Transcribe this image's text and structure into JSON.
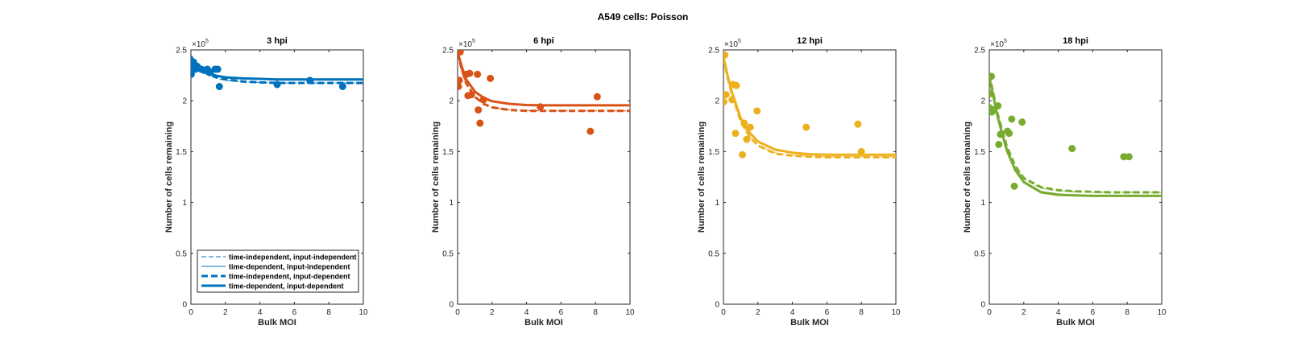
{
  "figure": {
    "title": "A549 cells: Poisson"
  },
  "chart_data": [
    {
      "type": "scatter",
      "title": "3 hpi",
      "xlabel": "Bulk MOI",
      "ylabel": "Number of cells remaining",
      "xlim": [
        0,
        10
      ],
      "ylim": [
        0,
        2.5
      ],
      "y_multiplier": "×10^5",
      "xticks": [
        "0",
        "2",
        "4",
        "6",
        "8",
        "10"
      ],
      "yticks": [
        "0",
        "0.5",
        "1",
        "1.5",
        "2",
        "2.5"
      ],
      "color": "#0072BD",
      "points": {
        "x": [
          0.02,
          0.05,
          0.1,
          0.15,
          0.25,
          0.35,
          0.45,
          0.6,
          0.75,
          0.95,
          1.1,
          1.4,
          1.55,
          1.65,
          5.0,
          6.9,
          8.8
        ],
        "y": [
          2.26,
          2.35,
          2.33,
          2.38,
          2.31,
          2.34,
          2.32,
          2.31,
          2.3,
          2.31,
          2.28,
          2.31,
          2.31,
          2.14,
          2.16,
          2.2,
          2.14
        ]
      },
      "series": [
        {
          "name": "time-independent, input-independent",
          "style": "thin-dashed",
          "x": [
            0,
            0.25,
            0.5,
            1,
            1.5,
            2,
            3,
            4,
            5,
            6,
            7,
            8,
            9,
            10
          ],
          "y": [
            2.41,
            2.35,
            2.3,
            2.25,
            2.22,
            2.2,
            2.185,
            2.18,
            2.175,
            2.175,
            2.175,
            2.175,
            2.175,
            2.175
          ]
        },
        {
          "name": "time-dependent, input-independent",
          "style": "thin-solid",
          "x": [
            0,
            0.25,
            0.5,
            1,
            1.5,
            2,
            3,
            4,
            5,
            6,
            7,
            8,
            9,
            10
          ],
          "y": [
            2.42,
            2.36,
            2.31,
            2.265,
            2.24,
            2.225,
            2.215,
            2.212,
            2.21,
            2.21,
            2.21,
            2.21,
            2.21,
            2.21
          ]
        },
        {
          "name": "time-independent, input-dependent",
          "style": "thick-dashed",
          "x": [
            0,
            0.25,
            0.5,
            1,
            1.5,
            2,
            3,
            4,
            5,
            6,
            7,
            8,
            9,
            10
          ],
          "y": [
            2.43,
            2.36,
            2.31,
            2.26,
            2.23,
            2.21,
            2.19,
            2.18,
            2.175,
            2.175,
            2.175,
            2.175,
            2.175,
            2.175
          ]
        },
        {
          "name": "time-dependent, input-dependent",
          "style": "thick-solid",
          "x": [
            0,
            0.25,
            0.5,
            1,
            1.5,
            2,
            3,
            4,
            5,
            6,
            7,
            8,
            9,
            10
          ],
          "y": [
            2.44,
            2.37,
            2.32,
            2.27,
            2.245,
            2.23,
            2.22,
            2.215,
            2.21,
            2.21,
            2.21,
            2.21,
            2.21,
            2.21
          ]
        }
      ],
      "legend": {
        "placement": "bottom-right",
        "entries": [
          "time-independent, input-independent",
          "time-dependent, input-independent",
          "time-independent, input-dependent",
          "time-dependent, input-dependent"
        ]
      }
    },
    {
      "type": "scatter",
      "title": "6 hpi",
      "xlabel": "Bulk MOI",
      "ylabel": "Number of cells remaining",
      "xlim": [
        0,
        10
      ],
      "ylim": [
        0,
        2.5
      ],
      "y_multiplier": "×10^5",
      "xticks": [
        "0",
        "2",
        "4",
        "6",
        "8",
        "10"
      ],
      "yticks": [
        "0",
        "0.5",
        "1",
        "1.5",
        "2",
        "2.5"
      ],
      "color": "#D95319",
      "points": {
        "x": [
          0.05,
          0.1,
          0.15,
          0.5,
          0.6,
          0.7,
          0.8,
          1.15,
          1.2,
          1.3,
          1.5,
          1.9,
          4.8,
          7.7,
          8.1
        ],
        "y": [
          2.14,
          2.2,
          2.48,
          2.26,
          2.05,
          2.27,
          2.06,
          2.26,
          1.91,
          1.78,
          2.01,
          2.22,
          1.94,
          1.7,
          2.04
        ]
      },
      "series": [
        {
          "name": "time-independent, input-independent",
          "style": "thin-dashed",
          "x": [
            0,
            0.25,
            0.5,
            1,
            1.5,
            2,
            3,
            4,
            5,
            6,
            7,
            8,
            9,
            10
          ],
          "y": [
            2.45,
            2.28,
            2.16,
            2.03,
            1.97,
            1.935,
            1.91,
            1.905,
            1.9,
            1.9,
            1.9,
            1.9,
            1.9,
            1.9
          ]
        },
        {
          "name": "time-dependent, input-independent",
          "style": "thin-solid",
          "x": [
            0,
            0.25,
            0.5,
            1,
            1.5,
            2,
            3,
            4,
            5,
            6,
            7,
            8,
            9,
            10
          ],
          "y": [
            2.46,
            2.31,
            2.2,
            2.08,
            2.02,
            1.99,
            1.965,
            1.955,
            1.95,
            1.95,
            1.95,
            1.95,
            1.95,
            1.95
          ]
        },
        {
          "name": "time-independent, input-dependent",
          "style": "thick-dashed",
          "x": [
            0,
            0.25,
            0.5,
            1,
            1.5,
            2,
            3,
            4,
            5,
            6,
            7,
            8,
            9,
            10
          ],
          "y": [
            2.47,
            2.3,
            2.17,
            2.04,
            1.97,
            1.935,
            1.91,
            1.9,
            1.9,
            1.9,
            1.9,
            1.9,
            1.9,
            1.9
          ]
        },
        {
          "name": "time-dependent, input-dependent",
          "style": "thick-solid",
          "x": [
            0,
            0.25,
            0.5,
            1,
            1.5,
            2,
            3,
            4,
            5,
            6,
            7,
            8,
            9,
            10
          ],
          "y": [
            2.48,
            2.33,
            2.21,
            2.09,
            2.03,
            1.995,
            1.97,
            1.958,
            1.955,
            1.955,
            1.955,
            1.955,
            1.955,
            1.955
          ]
        }
      ]
    },
    {
      "type": "scatter",
      "title": "12 hpi",
      "xlabel": "Bulk MOI",
      "ylabel": "Number of cells remaining",
      "xlim": [
        0,
        10
      ],
      "ylim": [
        0,
        2.5
      ],
      "y_multiplier": "×10^5",
      "xticks": [
        "0",
        "2",
        "4",
        "6",
        "8",
        "10"
      ],
      "yticks": [
        "0",
        "0.5",
        "1",
        "1.5",
        "2",
        "2.5"
      ],
      "color": "#EDB120",
      "points": {
        "x": [
          0.02,
          0.08,
          0.15,
          0.5,
          0.55,
          0.7,
          0.75,
          1.1,
          1.2,
          1.35,
          1.55,
          1.95,
          4.8,
          7.8,
          8.0
        ],
        "y": [
          1.99,
          2.45,
          2.06,
          2.01,
          2.16,
          1.68,
          2.15,
          1.47,
          1.78,
          1.62,
          1.74,
          1.9,
          1.74,
          1.77,
          1.5
        ]
      },
      "series": [
        {
          "name": "time-independent, input-independent",
          "style": "thin-dashed",
          "x": [
            0,
            0.25,
            0.5,
            1,
            1.5,
            2,
            3,
            4,
            5,
            6,
            7,
            8,
            9,
            10
          ],
          "y": [
            2.4,
            2.21,
            2.05,
            1.8,
            1.65,
            1.56,
            1.49,
            1.465,
            1.455,
            1.45,
            1.45,
            1.45,
            1.45,
            1.45
          ]
        },
        {
          "name": "time-dependent, input-independent",
          "style": "thin-solid",
          "x": [
            0,
            0.25,
            0.5,
            1,
            1.5,
            2,
            3,
            4,
            5,
            6,
            7,
            8,
            9,
            10
          ],
          "y": [
            2.41,
            2.22,
            2.07,
            1.82,
            1.68,
            1.59,
            1.51,
            1.485,
            1.475,
            1.47,
            1.47,
            1.47,
            1.47,
            1.47
          ]
        },
        {
          "name": "time-independent, input-dependent",
          "style": "thick-dashed",
          "x": [
            0,
            0.25,
            0.5,
            1,
            1.5,
            2,
            3,
            4,
            5,
            6,
            7,
            8,
            9,
            10
          ],
          "y": [
            2.42,
            2.22,
            2.06,
            1.8,
            1.65,
            1.56,
            1.48,
            1.46,
            1.45,
            1.445,
            1.445,
            1.445,
            1.445,
            1.445
          ]
        },
        {
          "name": "time-dependent, input-dependent",
          "style": "thick-solid",
          "x": [
            0,
            0.25,
            0.5,
            1,
            1.5,
            2,
            3,
            4,
            5,
            6,
            7,
            8,
            9,
            10
          ],
          "y": [
            2.43,
            2.24,
            2.08,
            1.83,
            1.69,
            1.6,
            1.52,
            1.49,
            1.475,
            1.47,
            1.47,
            1.47,
            1.47,
            1.47
          ]
        }
      ]
    },
    {
      "type": "scatter",
      "title": "18 hpi",
      "xlabel": "Bulk MOI",
      "ylabel": "Number of cells remaining",
      "xlim": [
        0,
        10
      ],
      "ylim": [
        0,
        2.5
      ],
      "y_multiplier": "×10^5",
      "xticks": [
        "0",
        "2",
        "4",
        "6",
        "8",
        "10"
      ],
      "yticks": [
        "0",
        "0.5",
        "1",
        "1.5",
        "2",
        "2.5"
      ],
      "color": "#77AC30",
      "points": {
        "x": [
          0.02,
          0.08,
          0.12,
          0.15,
          0.25,
          0.5,
          0.55,
          0.65,
          1.05,
          1.15,
          1.3,
          1.45,
          1.9,
          4.8,
          7.8,
          8.1
        ],
        "y": [
          1.93,
          2.07,
          2.24,
          1.89,
          1.91,
          1.95,
          1.57,
          1.67,
          1.7,
          1.68,
          1.82,
          1.16,
          1.79,
          1.53,
          1.45,
          1.45
        ]
      },
      "series": [
        {
          "name": "time-independent, input-independent",
          "style": "thin-dashed",
          "x": [
            0,
            0.25,
            0.5,
            1,
            1.5,
            2,
            3,
            4,
            5,
            6,
            7,
            8,
            9,
            10
          ],
          "y": [
            2.25,
            2.05,
            1.85,
            1.55,
            1.35,
            1.23,
            1.14,
            1.115,
            1.105,
            1.1,
            1.1,
            1.1,
            1.1,
            1.1
          ]
        },
        {
          "name": "time-dependent, input-independent",
          "style": "thin-solid",
          "x": [
            0,
            0.25,
            0.5,
            1,
            1.5,
            2,
            3,
            4,
            5,
            6,
            7,
            8,
            9,
            10
          ],
          "y": [
            2.24,
            2.04,
            1.84,
            1.53,
            1.33,
            1.21,
            1.11,
            1.085,
            1.075,
            1.07,
            1.07,
            1.07,
            1.07,
            1.07
          ]
        },
        {
          "name": "time-independent, input-dependent",
          "style": "thick-dashed",
          "x": [
            0,
            0.25,
            0.5,
            1,
            1.5,
            2,
            3,
            4,
            5,
            6,
            7,
            8,
            9,
            10
          ],
          "y": [
            2.26,
            2.06,
            1.86,
            1.56,
            1.36,
            1.24,
            1.15,
            1.12,
            1.11,
            1.105,
            1.1,
            1.1,
            1.1,
            1.1
          ]
        },
        {
          "name": "time-dependent, input-dependent",
          "style": "thick-solid",
          "x": [
            0,
            0.25,
            0.5,
            1,
            1.5,
            2,
            3,
            4,
            5,
            6,
            7,
            8,
            9,
            10
          ],
          "y": [
            2.23,
            2.03,
            1.83,
            1.52,
            1.32,
            1.2,
            1.1,
            1.075,
            1.07,
            1.065,
            1.065,
            1.065,
            1.065,
            1.065
          ]
        }
      ]
    }
  ]
}
